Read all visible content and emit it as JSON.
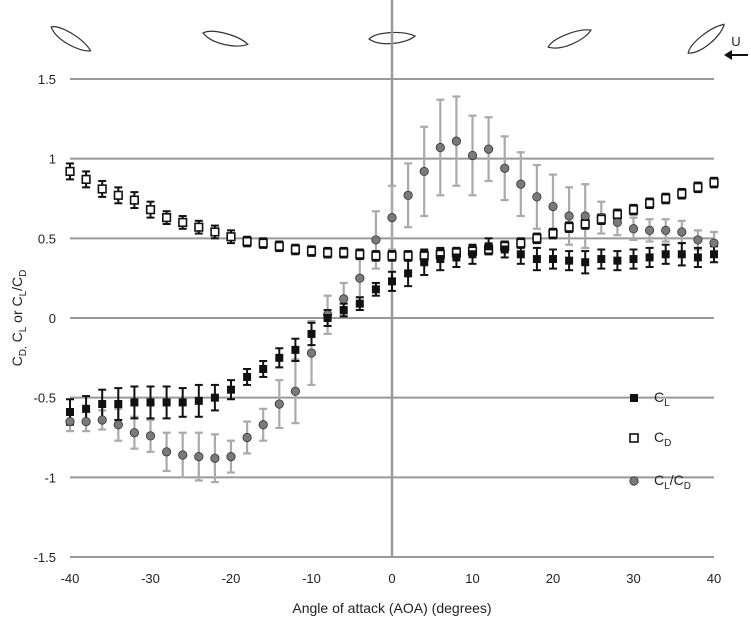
{
  "chart_data": {
    "type": "scatter",
    "xlabel": "Angle of attack (AOA) (degrees)",
    "ylabel": "C_D, C_L or C_L/C_D",
    "xlim": [
      -40,
      40
    ],
    "ylim": [
      -1.5,
      1.5
    ],
    "x_ticks": [
      "-40",
      "-30",
      "-20",
      "-10",
      "0",
      "10",
      "20",
      "30",
      "40"
    ],
    "y_ticks": [
      "-1.5",
      "-1",
      "-0.5",
      "0",
      "0.5",
      "1",
      "1.5"
    ],
    "grid": "horizontal",
    "flow_label": "U",
    "legend_position": "lower-right",
    "series": [
      {
        "name": "CL",
        "marker": "square-filled",
        "color": "#111111",
        "error_color": "#111111",
        "x": [
          -40,
          -38,
          -36,
          -34,
          -32,
          -30,
          -28,
          -26,
          -24,
          -22,
          -20,
          -18,
          -16,
          -14,
          -12,
          -10,
          -8,
          -6,
          -4,
          -2,
          0,
          2,
          4,
          6,
          8,
          10,
          12,
          14,
          16,
          18,
          20,
          22,
          24,
          26,
          28,
          30,
          32,
          34,
          36,
          38,
          40
        ],
        "y": [
          -0.59,
          -0.57,
          -0.54,
          -0.54,
          -0.53,
          -0.53,
          -0.53,
          -0.53,
          -0.52,
          -0.5,
          -0.45,
          -0.37,
          -0.32,
          -0.25,
          -0.2,
          -0.1,
          0.0,
          0.05,
          0.09,
          0.18,
          0.23,
          0.28,
          0.35,
          0.37,
          0.38,
          0.4,
          0.45,
          0.43,
          0.4,
          0.37,
          0.37,
          0.36,
          0.35,
          0.37,
          0.36,
          0.37,
          0.38,
          0.4,
          0.4,
          0.38,
          0.4
        ],
        "err": [
          0.08,
          0.08,
          0.09,
          0.1,
          0.1,
          0.1,
          0.1,
          0.09,
          0.1,
          0.08,
          0.06,
          0.05,
          0.05,
          0.06,
          0.07,
          0.07,
          0.05,
          0.04,
          0.04,
          0.04,
          0.06,
          0.08,
          0.08,
          0.07,
          0.06,
          0.06,
          0.05,
          0.05,
          0.06,
          0.07,
          0.06,
          0.06,
          0.07,
          0.06,
          0.06,
          0.06,
          0.06,
          0.06,
          0.07,
          0.06,
          0.05
        ]
      },
      {
        "name": "CD",
        "marker": "square-open",
        "color": "#111111",
        "error_color": "#111111",
        "x": [
          -40,
          -38,
          -36,
          -34,
          -32,
          -30,
          -28,
          -26,
          -24,
          -22,
          -20,
          -18,
          -16,
          -14,
          -12,
          -10,
          -8,
          -6,
          -4,
          -2,
          0,
          2,
          4,
          6,
          8,
          10,
          12,
          14,
          16,
          18,
          20,
          22,
          24,
          26,
          28,
          30,
          32,
          34,
          36,
          38,
          40
        ],
        "y": [
          0.92,
          0.87,
          0.81,
          0.77,
          0.74,
          0.68,
          0.63,
          0.6,
          0.57,
          0.54,
          0.51,
          0.48,
          0.47,
          0.45,
          0.43,
          0.42,
          0.41,
          0.41,
          0.4,
          0.39,
          0.39,
          0.39,
          0.39,
          0.4,
          0.41,
          0.42,
          0.43,
          0.45,
          0.47,
          0.5,
          0.53,
          0.57,
          0.59,
          0.62,
          0.65,
          0.68,
          0.72,
          0.75,
          0.78,
          0.82,
          0.85
        ],
        "err": [
          0.05,
          0.05,
          0.05,
          0.05,
          0.05,
          0.05,
          0.04,
          0.04,
          0.04,
          0.04,
          0.04,
          0.03,
          0.03,
          0.03,
          0.03,
          0.03,
          0.03,
          0.03,
          0.03,
          0.03,
          0.03,
          0.03,
          0.03,
          0.03,
          0.03,
          0.03,
          0.03,
          0.03,
          0.03,
          0.03,
          0.03,
          0.03,
          0.03,
          0.03,
          0.03,
          0.03,
          0.03,
          0.03,
          0.03,
          0.03,
          0.03
        ]
      },
      {
        "name": "CL/CD",
        "marker": "circle",
        "color": "#777777",
        "error_color": "#aaaaaa",
        "x": [
          -40,
          -38,
          -36,
          -34,
          -32,
          -30,
          -28,
          -26,
          -24,
          -22,
          -20,
          -18,
          -16,
          -14,
          -12,
          -10,
          -8,
          -6,
          -4,
          -2,
          0,
          2,
          4,
          6,
          8,
          10,
          12,
          14,
          16,
          18,
          20,
          22,
          24,
          26,
          28,
          30,
          32,
          34,
          36,
          38,
          40
        ],
        "y": [
          -0.65,
          -0.65,
          -0.64,
          -0.67,
          -0.72,
          -0.74,
          -0.84,
          -0.86,
          -0.87,
          -0.88,
          -0.87,
          -0.75,
          -0.67,
          -0.54,
          -0.46,
          -0.22,
          0.02,
          0.12,
          0.25,
          0.49,
          0.63,
          0.77,
          0.92,
          1.07,
          1.11,
          1.02,
          1.06,
          0.94,
          0.84,
          0.76,
          0.7,
          0.64,
          0.64,
          0.63,
          0.6,
          0.56,
          0.55,
          0.55,
          0.54,
          0.49,
          0.47
        ],
        "err": [
          0.06,
          0.06,
          0.06,
          0.1,
          0.1,
          0.1,
          0.12,
          0.14,
          0.15,
          0.15,
          0.1,
          0.1,
          0.1,
          0.15,
          0.2,
          0.2,
          0.12,
          0.1,
          0.12,
          0.18,
          0.2,
          0.2,
          0.28,
          0.3,
          0.28,
          0.25,
          0.2,
          0.2,
          0.2,
          0.2,
          0.2,
          0.18,
          0.2,
          0.1,
          0.08,
          0.07,
          0.07,
          0.07,
          0.07,
          0.06,
          0.07
        ]
      }
    ]
  },
  "legend": {
    "items": [
      {
        "main": "C",
        "sub": "L"
      },
      {
        "main": "C",
        "sub": "D"
      },
      {
        "main": "C",
        "sub": "L",
        "main2": "/C",
        "sub2": "D"
      }
    ]
  }
}
